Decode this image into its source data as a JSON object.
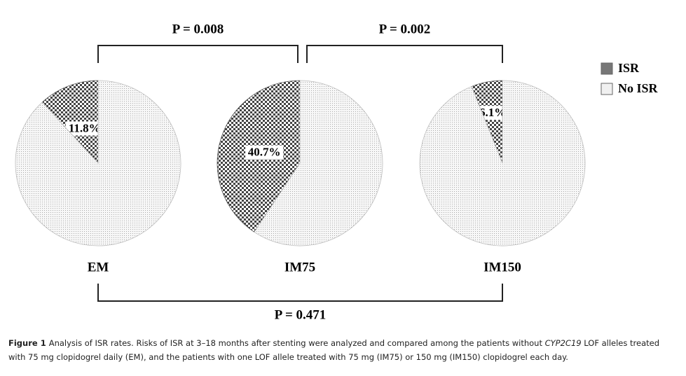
{
  "chart_data": [
    {
      "type": "pie",
      "title": "EM",
      "categories": [
        "ISR",
        "No ISR"
      ],
      "colors": [
        "#555555",
        "#bdbdbd"
      ],
      "values": [
        11.8,
        88.2
      ],
      "value_labels": [
        "11.8%",
        null
      ]
    },
    {
      "type": "pie",
      "title": "IM75",
      "categories": [
        "ISR",
        "No ISR"
      ],
      "colors": [
        "#555555",
        "#bdbdbd"
      ],
      "values": [
        40.7,
        59.3
      ],
      "value_labels": [
        "40.7%",
        null
      ]
    },
    {
      "type": "pie",
      "title": "IM150",
      "categories": [
        "ISR",
        "No ISR"
      ],
      "colors": [
        "#555555",
        "#bdbdbd"
      ],
      "values": [
        6.1,
        93.9
      ],
      "value_labels": [
        "6.1%",
        null
      ]
    }
  ],
  "legend": {
    "entries": [
      "ISR",
      "No ISR"
    ],
    "colors": [
      "#777777",
      "#f0f0f0"
    ]
  },
  "annotations": [
    "P = 0.008",
    "P = 0.002",
    "P = 0.471"
  ],
  "caption": {
    "label": "Figure 1",
    "parts": [
      "Analysis of ISR rates. Risks of ISR at 3–18 months after stenting were analyzed and compared among the patients without ",
      "CYP2C19",
      " LOF alleles treated with 75 mg clopidogrel daily (EM), and the patients with one LOF allele treated with 75 mg (IM75) or 150 mg (IM150) clopidogrel each day."
    ]
  }
}
